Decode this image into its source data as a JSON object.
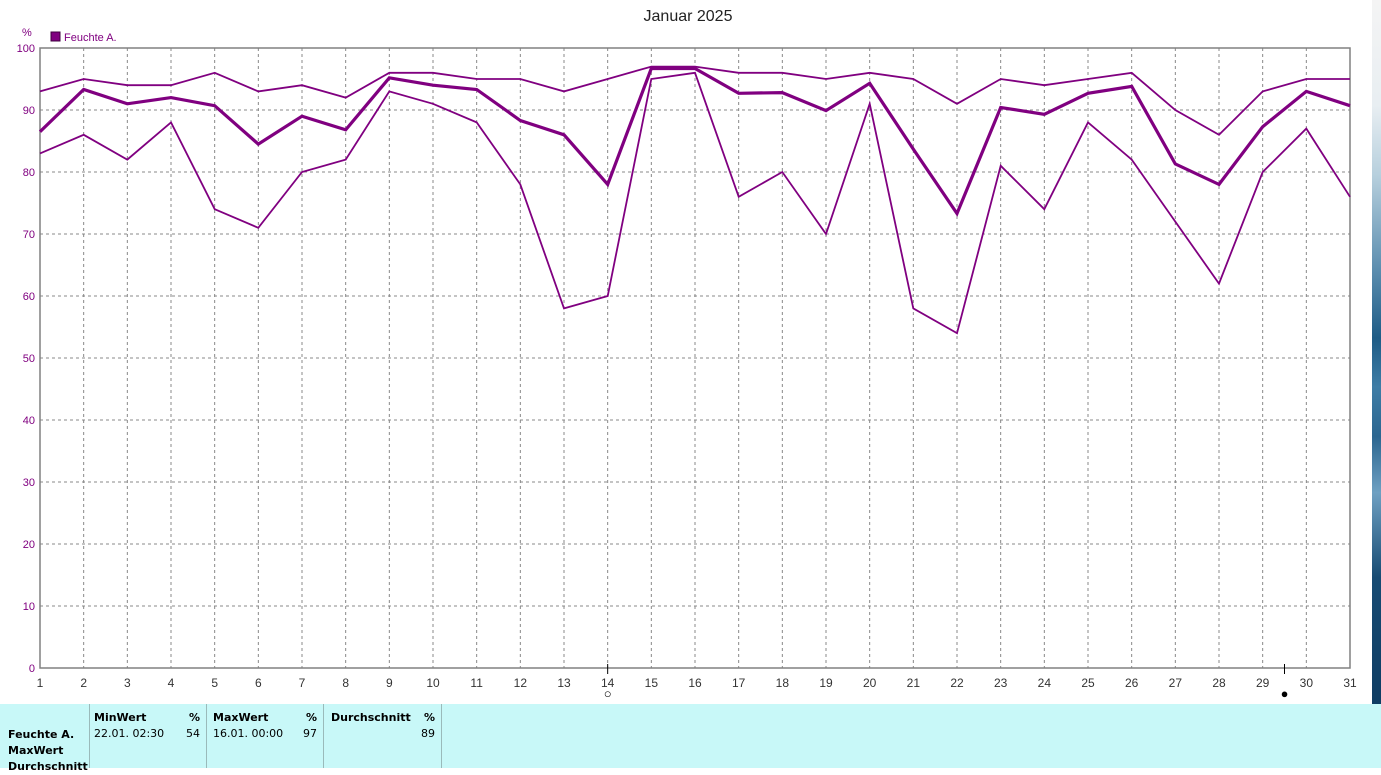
{
  "chart_data": {
    "type": "line",
    "title": "Januar 2025",
    "ylabel": "%",
    "ylim": [
      0,
      100
    ],
    "yticks": [
      0,
      10,
      20,
      30,
      40,
      50,
      60,
      70,
      80,
      90,
      100
    ],
    "x": [
      1,
      2,
      3,
      4,
      5,
      6,
      7,
      8,
      9,
      10,
      11,
      12,
      13,
      14,
      15,
      16,
      17,
      18,
      19,
      20,
      21,
      22,
      23,
      24,
      25,
      26,
      27,
      28,
      29,
      30,
      31
    ],
    "xlim": [
      1,
      31
    ],
    "grid": true,
    "legend": "top-left",
    "legend_entries": [
      "Feuchte A."
    ],
    "color": "#800080",
    "series": [
      {
        "values": [
          93,
          95,
          94,
          94,
          96,
          93,
          94,
          92,
          96,
          96,
          95,
          95,
          93,
          95,
          97,
          97,
          96,
          96,
          95,
          96,
          95,
          91,
          95,
          94,
          95,
          96,
          90,
          86,
          93,
          95,
          95
        ]
      },
      {
        "values": [
          86.5,
          93.3,
          91,
          92,
          90.7,
          84.5,
          89,
          86.8,
          95.2,
          94,
          93.3,
          88.3,
          86,
          78,
          96.7,
          96.7,
          92.7,
          92.8,
          89.9,
          94.3,
          83.7,
          73.3,
          90.4,
          89.3,
          92.7,
          93.8,
          81.3,
          78,
          87.3,
          93,
          90.7
        ]
      },
      {
        "values": [
          83,
          86,
          82,
          88,
          74,
          71,
          80,
          82,
          93,
          91,
          88,
          78,
          58,
          60,
          95,
          96,
          76,
          80,
          70,
          91,
          58,
          54,
          81,
          74,
          88,
          82,
          72,
          62,
          80,
          87,
          76
        ]
      }
    ],
    "markers": [
      {
        "position": 14,
        "symbol": "○"
      },
      {
        "position": 29.5,
        "symbol": "●"
      }
    ]
  },
  "stats": {
    "rows": [
      "Feuchte A.",
      "MaxWert",
      "Durchschnitt"
    ],
    "columns": [
      {
        "header": "MinWert",
        "unit": "%",
        "datetime": "22.01.  02:30",
        "value": "54"
      },
      {
        "header": "MaxWert",
        "unit": "%",
        "datetime": "16.01.  00:00",
        "value": "97"
      },
      {
        "header": "Durchschnitt",
        "unit": "%",
        "datetime": "",
        "value": "89"
      }
    ]
  },
  "colors": {
    "series": "#800080",
    "panel_bg": "#c8f8f8",
    "grid": "#888888"
  }
}
